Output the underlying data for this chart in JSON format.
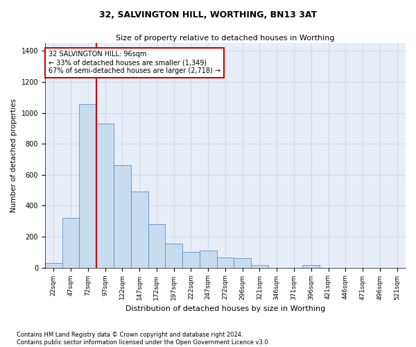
{
  "title": "32, SALVINGTON HILL, WORTHING, BN13 3AT",
  "subtitle": "Size of property relative to detached houses in Worthing",
  "xlabel": "Distribution of detached houses by size in Worthing",
  "ylabel": "Number of detached properties",
  "footnote": "Contains HM Land Registry data © Crown copyright and database right 2024.\nContains public sector information licensed under the Open Government Licence v3.0.",
  "bar_labels": [
    "22sqm",
    "47sqm",
    "72sqm",
    "97sqm",
    "122sqm",
    "147sqm",
    "172sqm",
    "197sqm",
    "222sqm",
    "247sqm",
    "272sqm",
    "296sqm",
    "321sqm",
    "346sqm",
    "371sqm",
    "396sqm",
    "421sqm",
    "446sqm",
    "471sqm",
    "496sqm",
    "521sqm"
  ],
  "bar_values": [
    30,
    320,
    1055,
    930,
    660,
    490,
    280,
    155,
    100,
    110,
    65,
    60,
    15,
    0,
    0,
    15,
    0,
    0,
    0,
    0,
    0
  ],
  "bar_color": "#c8dcf0",
  "bar_edge_color": "#5b8cc8",
  "grid_color": "#d0d8e8",
  "background_color": "#e8eef8",
  "annotation_box_text": "32 SALVINGTON HILL: 96sqm\n← 33% of detached houses are smaller (1,349)\n67% of semi-detached houses are larger (2,718) →",
  "annotation_box_color": "#cc0000",
  "ylim": [
    0,
    1450
  ],
  "yticks": [
    0,
    200,
    400,
    600,
    800,
    1000,
    1200,
    1400
  ],
  "title_fontsize": 9,
  "subtitle_fontsize": 8,
  "ylabel_fontsize": 7.5,
  "xlabel_fontsize": 8,
  "tick_fontsize": 6.5,
  "annot_fontsize": 7,
  "footnote_fontsize": 6
}
